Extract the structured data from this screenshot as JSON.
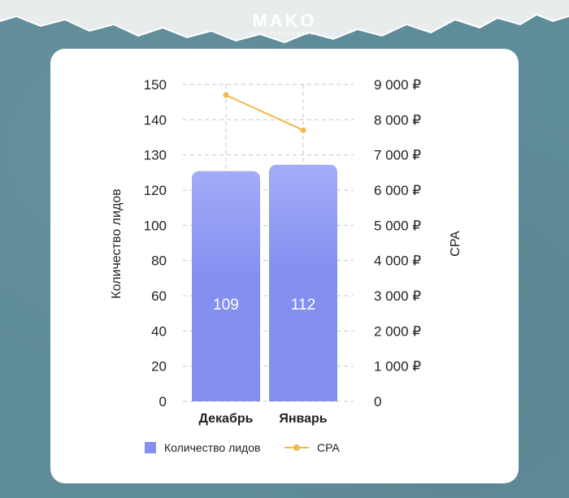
{
  "brand": {
    "name": "MAKO",
    "tagline": "DEEP PERFORMANCE"
  },
  "colors": {
    "background": "#5f8c99",
    "bar": "#8490f0",
    "bar_top": "#a2acf8",
    "line": "#f2b84b",
    "grid": "#c8c8c8"
  },
  "chart_data": {
    "type": "bar",
    "categories": [
      "Декабрь",
      "Январь"
    ],
    "series": [
      {
        "name": "Количество лидов",
        "type": "bar",
        "axis": "left",
        "values": [
          109,
          112
        ],
        "labels": [
          "109",
          "112"
        ]
      },
      {
        "name": "CPA",
        "type": "line",
        "axis": "right",
        "values": [
          8700,
          7700
        ]
      }
    ],
    "ylabel_left": "Количество лидов",
    "ylabel_right": "CPA",
    "ylim_left": [
      0,
      150
    ],
    "ylim_right": [
      0,
      9000
    ],
    "yticks_left": [
      "0",
      "20",
      "40",
      "60",
      "80",
      "100",
      "120",
      "130",
      "140",
      "150"
    ],
    "yticks_right": [
      "0",
      "1 000 ₽",
      "2 000 ₽",
      "3 000 ₽",
      "4 000 ₽",
      "5 000 ₽",
      "6 000 ₽",
      "7 000 ₽",
      "8 000 ₽",
      "9 000 ₽"
    ],
    "grid": true,
    "legend_position": "bottom"
  }
}
